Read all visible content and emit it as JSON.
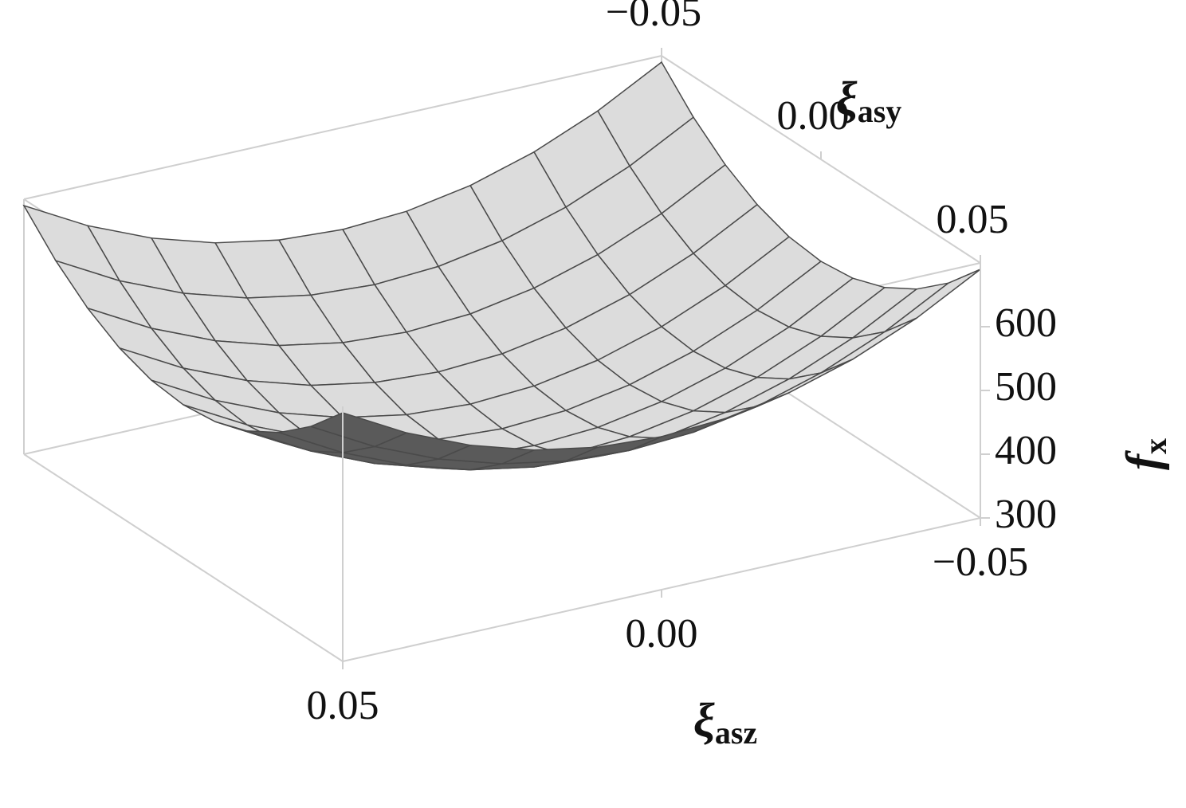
{
  "chart_data": {
    "type": "surface",
    "x_label": {
      "symbol": "ξ",
      "subscript": "asy"
    },
    "y_label": {
      "symbol": "ξ",
      "subscript": "asz"
    },
    "z_label": {
      "symbol": "f",
      "subscript": "x"
    },
    "x": [
      -0.05,
      -0.04,
      -0.03,
      -0.02,
      -0.01,
      0,
      0.01,
      0.02,
      0.03,
      0.04,
      0.05
    ],
    "y": [
      -0.05,
      -0.04,
      -0.03,
      -0.02,
      -0.01,
      0,
      0.01,
      0.02,
      0.03,
      0.04,
      0.05
    ],
    "z": [
      [
        690,
        636,
        594,
        564,
        546,
        540,
        546,
        564,
        594,
        636,
        690
      ],
      [
        636,
        582,
        540,
        510,
        492,
        486,
        492,
        510,
        540,
        582,
        636
      ],
      [
        594,
        540,
        498,
        468,
        450,
        444,
        450,
        468,
        498,
        540,
        594
      ],
      [
        564,
        510,
        468,
        438,
        420,
        414,
        420,
        438,
        468,
        510,
        564
      ],
      [
        546,
        492,
        450,
        420,
        402,
        396,
        402,
        420,
        450,
        492,
        546
      ],
      [
        540,
        486,
        444,
        414,
        396,
        390,
        396,
        414,
        444,
        486,
        540
      ],
      [
        546,
        492,
        450,
        420,
        402,
        396,
        402,
        420,
        450,
        492,
        546
      ],
      [
        564,
        510,
        468,
        438,
        420,
        414,
        420,
        438,
        468,
        510,
        564
      ],
      [
        594,
        540,
        498,
        468,
        450,
        444,
        450,
        468,
        498,
        540,
        594
      ],
      [
        636,
        582,
        540,
        510,
        492,
        486,
        492,
        510,
        540,
        582,
        636
      ],
      [
        690,
        636,
        594,
        564,
        546,
        540,
        546,
        564,
        594,
        636,
        690
      ]
    ],
    "xlim": [
      -0.05,
      0.05
    ],
    "ylim": [
      -0.05,
      0.05
    ],
    "zlim": [
      300,
      700
    ],
    "xticks": [
      {
        "value": -0.05,
        "label": "−0.05"
      },
      {
        "value": 0,
        "label": "0.00"
      },
      {
        "value": 0.05,
        "label": "0.05"
      }
    ],
    "yticks": [
      {
        "value": -0.05,
        "label": "−0.05"
      },
      {
        "value": 0,
        "label": "0.00"
      },
      {
        "value": 0.05,
        "label": "0.05"
      }
    ],
    "zticks": [
      300,
      400,
      500,
      600
    ],
    "surface_color": "#dcdcdc",
    "mesh_color": "#4a4a4a",
    "box_color": "#cfcfcf"
  }
}
